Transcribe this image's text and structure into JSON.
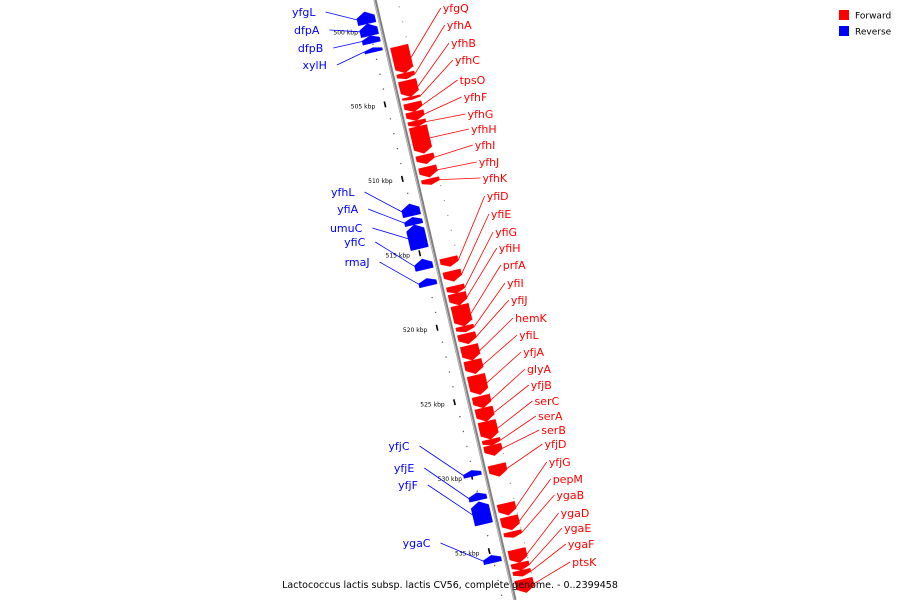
{
  "legend": [
    {
      "label": "Forward",
      "color": "#ff0000"
    },
    {
      "label": "Reverse",
      "color": "#0000ff"
    }
  ],
  "colors": {
    "forward": "#ff0000",
    "reverse": "#0000ff",
    "backbone": "#808080"
  },
  "caption": "Lactococcus lactis subsp. lactis CV56, complete genome. - 0..2399458",
  "axis": {
    "start_kbp": 498.2,
    "end_kbp": 538.5,
    "tick_unit": "kbp",
    "labeled_ticks": [
      500,
      505,
      510,
      515,
      520,
      525,
      530,
      535
    ]
  },
  "features": [
    {
      "name": "yfgL",
      "strand": "reverse",
      "start_kbp": 498.8,
      "end_kbp": 499.6
    },
    {
      "name": "dfpA",
      "strand": "reverse",
      "start_kbp": 499.6,
      "end_kbp": 500.4
    },
    {
      "name": "dfpB",
      "strand": "reverse",
      "start_kbp": 500.4,
      "end_kbp": 500.9
    },
    {
      "name": "xylH",
      "strand": "reverse",
      "start_kbp": 501.2,
      "end_kbp": 501.5
    },
    {
      "name": "yfgQ",
      "strand": "forward",
      "start_kbp": 501.5,
      "end_kbp": 503.3
    },
    {
      "name": "yfhA",
      "strand": "forward",
      "start_kbp": 503.3,
      "end_kbp": 503.7
    },
    {
      "name": "yfhB",
      "strand": "forward",
      "start_kbp": 503.8,
      "end_kbp": 504.9
    },
    {
      "name": "yfhC",
      "strand": "forward",
      "start_kbp": 504.9,
      "end_kbp": 505.1
    },
    {
      "name": "tpsO",
      "strand": "forward",
      "start_kbp": 505.3,
      "end_kbp": 505.9
    },
    {
      "name": "yfhF",
      "strand": "forward",
      "start_kbp": 505.9,
      "end_kbp": 506.5
    },
    {
      "name": "yfhG",
      "strand": "forward",
      "start_kbp": 506.5,
      "end_kbp": 506.9
    },
    {
      "name": "yfhH",
      "strand": "forward",
      "start_kbp": 506.9,
      "end_kbp": 508.7
    },
    {
      "name": "yfhI",
      "strand": "forward",
      "start_kbp": 508.8,
      "end_kbp": 509.4
    },
    {
      "name": "yfhJ",
      "strand": "forward",
      "start_kbp": 509.6,
      "end_kbp": 510.3
    },
    {
      "name": "yfhK",
      "strand": "forward",
      "start_kbp": 510.4,
      "end_kbp": 510.8
    },
    {
      "name": "yfhL",
      "strand": "reverse",
      "start_kbp": 511.7,
      "end_kbp": 512.5
    },
    {
      "name": "yfiA",
      "strand": "reverse",
      "start_kbp": 512.6,
      "end_kbp": 513.1
    },
    {
      "name": "umuC",
      "strand": "reverse",
      "start_kbp": 513.1,
      "end_kbp": 514.7
    },
    {
      "name": "yfiC",
      "strand": "reverse",
      "start_kbp": 515.4,
      "end_kbp": 516.1
    },
    {
      "name": "rmaJ",
      "strand": "reverse",
      "start_kbp": 516.7,
      "end_kbp": 517.2
    },
    {
      "name": "yfiD",
      "strand": "forward",
      "start_kbp": 515.7,
      "end_kbp": 516.3
    },
    {
      "name": "yfiE",
      "strand": "forward",
      "start_kbp": 516.6,
      "end_kbp": 517.3
    },
    {
      "name": "yfiG",
      "strand": "forward",
      "start_kbp": 517.6,
      "end_kbp": 518.1
    },
    {
      "name": "yfiH",
      "strand": "forward",
      "start_kbp": 518.1,
      "end_kbp": 518.9
    },
    {
      "name": "prfA",
      "strand": "forward",
      "start_kbp": 518.9,
      "end_kbp": 520.3
    },
    {
      "name": "yfiI",
      "strand": "forward",
      "start_kbp": 520.3,
      "end_kbp": 520.7
    },
    {
      "name": "yfiJ",
      "strand": "forward",
      "start_kbp": 520.8,
      "end_kbp": 521.5
    },
    {
      "name": "hemK",
      "strand": "forward",
      "start_kbp": 521.6,
      "end_kbp": 522.6
    },
    {
      "name": "yfiL",
      "strand": "forward",
      "start_kbp": 522.6,
      "end_kbp": 523.5
    },
    {
      "name": "yfjA",
      "strand": "forward",
      "start_kbp": 523.6,
      "end_kbp": 524.9
    },
    {
      "name": "glyA",
      "strand": "forward",
      "start_kbp": 525.0,
      "end_kbp": 525.8
    },
    {
      "name": "yfjB",
      "strand": "forward",
      "start_kbp": 525.8,
      "end_kbp": 526.7
    },
    {
      "name": "serC",
      "strand": "forward",
      "start_kbp": 526.7,
      "end_kbp": 527.9
    },
    {
      "name": "serA",
      "strand": "forward",
      "start_kbp": 527.9,
      "end_kbp": 528.3
    },
    {
      "name": "serB",
      "strand": "forward",
      "start_kbp": 528.3,
      "end_kbp": 529.0
    },
    {
      "name": "yfjC",
      "strand": "reverse",
      "start_kbp": 529.6,
      "end_kbp": 530.0
    },
    {
      "name": "yfjD",
      "strand": "forward",
      "start_kbp": 529.6,
      "end_kbp": 530.4
    },
    {
      "name": "yfjE",
      "strand": "reverse",
      "start_kbp": 531.1,
      "end_kbp": 531.6
    },
    {
      "name": "yfjF",
      "strand": "reverse",
      "start_kbp": 531.7,
      "end_kbp": 533.2
    },
    {
      "name": "yfjG",
      "strand": "forward",
      "start_kbp": 532.2,
      "end_kbp": 533.0
    },
    {
      "name": "pepM",
      "strand": "forward",
      "start_kbp": 533.1,
      "end_kbp": 534.0
    },
    {
      "name": "ygaB",
      "strand": "forward",
      "start_kbp": 534.1,
      "end_kbp": 534.5
    },
    {
      "name": "ygaC",
      "strand": "reverse",
      "start_kbp": 535.3,
      "end_kbp": 535.8
    },
    {
      "name": "ygaD",
      "strand": "forward",
      "start_kbp": 535.3,
      "end_kbp": 536.2
    },
    {
      "name": "ygaE",
      "strand": "forward",
      "start_kbp": 536.2,
      "end_kbp": 536.7
    },
    {
      "name": "ygaF",
      "strand": "forward",
      "start_kbp": 536.7,
      "end_kbp": 537.1
    },
    {
      "name": "ptsK",
      "strand": "forward",
      "start_kbp": 537.3,
      "end_kbp": 538.2
    }
  ],
  "label_columns": {
    "forward": [
      "yfgQ",
      "yfhA",
      "yfhB",
      "yfhC",
      "tpsO",
      "yfhF",
      "yfhG",
      "yfhH",
      "yfhI",
      "yfhJ",
      "yfhK",
      "yfiD",
      "yfiE",
      "yfiG",
      "yfiH",
      "prfA",
      "yfiI",
      "yfiJ",
      "hemK",
      "yfiL",
      "yfjA",
      "glyA",
      "yfjB",
      "serC",
      "serA",
      "serB",
      "yfjD",
      "yfjG",
      "pepM",
      "ygaB",
      "ygaD",
      "ygaE",
      "ygaF",
      "ptsK"
    ],
    "reverse": [
      "yfgL",
      "dfpA",
      "dfpB",
      "xylH",
      "yfhL",
      "yfiA",
      "umuC",
      "yfiC",
      "rmaJ",
      "yfjC",
      "yfjE",
      "yfjF",
      "ygaC"
    ]
  }
}
